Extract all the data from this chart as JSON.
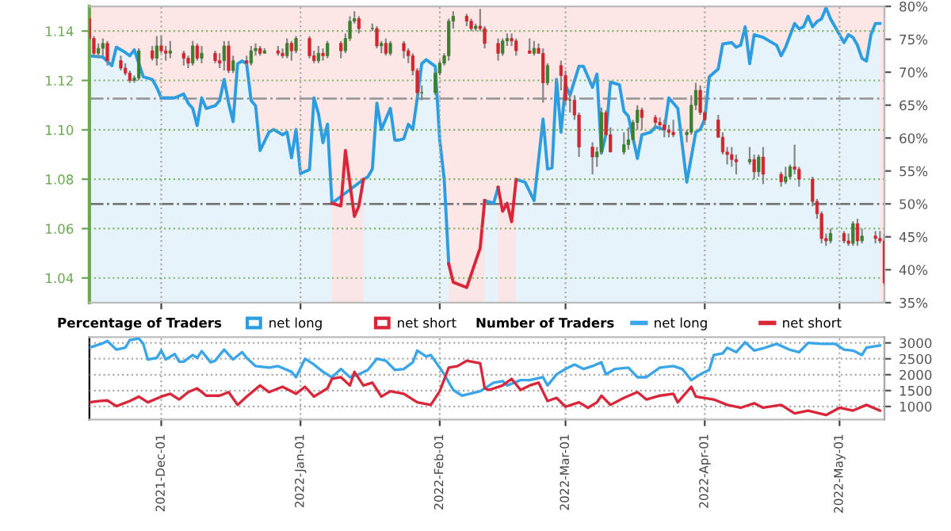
{
  "chart_data": [
    {
      "type": "candlestick",
      "legend_title": "Percentage of Traders",
      "legend": "bottom",
      "grid": true,
      "tick_labels": "y",
      "xlim": [
        "2021-11-15",
        "2022-05-11"
      ],
      "xticks": [
        {
          "value": "2021-12-01",
          "label": null
        },
        {
          "value": "2022-01-01",
          "label": null
        },
        {
          "value": "2022-02-01",
          "label": null
        },
        {
          "value": "2022-03-01",
          "label": null
        },
        {
          "value": "2022-04-01",
          "label": null
        },
        {
          "value": "2022-05-01",
          "label": null
        }
      ],
      "ylim": [
        1.03,
        1.15
      ],
      "yticks": [
        1.04,
        1.06,
        1.08,
        {
          "value": 1.1,
          "label": "1.10"
        },
        1.12,
        1.14
      ],
      "y2lim": [
        35,
        80
      ],
      "y2ticks": [
        {
          "value": 35,
          "label": "35%"
        },
        {
          "value": 40,
          "label": "40%"
        },
        {
          "value": 45,
          "label": "45%"
        },
        {
          "value": 50,
          "label": "50%"
        },
        {
          "value": 55,
          "label": "55%"
        },
        {
          "value": 60,
          "label": "60%"
        },
        {
          "value": 65,
          "label": "65%"
        },
        {
          "value": 70,
          "label": "70%"
        },
        {
          "value": 75,
          "label": "75%"
        },
        {
          "value": 80,
          "label": "80%"
        }
      ],
      "ref_lines": [
        {
          "axis": "y2",
          "value": 50,
          "label": null,
          "color": "#777777",
          "line_style": "dashdot"
        },
        {
          "axis": "y2",
          "value": 66,
          "label": null,
          "color": "#999999",
          "line_style": "dashdot"
        }
      ],
      "x": [
        "2021-11-15",
        "2021-11-16",
        "2021-11-17",
        "2021-11-18",
        "2021-11-19",
        "2021-11-22",
        "2021-11-23",
        "2021-11-24",
        "2021-11-25",
        "2021-11-26",
        "2021-11-29",
        "2021-11-30",
        "2021-12-01",
        "2021-12-02",
        "2021-12-03",
        "2021-12-06",
        "2021-12-07",
        "2021-12-08",
        "2021-12-09",
        "2021-12-10",
        "2021-12-13",
        "2021-12-14",
        "2021-12-15",
        "2021-12-16",
        "2021-12-17",
        "2021-12-20",
        "2021-12-21",
        "2021-12-22",
        "2021-12-23",
        "2021-12-24",
        "2021-12-27",
        "2021-12-28",
        "2021-12-29",
        "2021-12-30",
        "2021-12-31",
        "2022-01-03",
        "2022-01-04",
        "2022-01-05",
        "2022-01-06",
        "2022-01-07",
        "2022-01-10",
        "2022-01-11",
        "2022-01-12",
        "2022-01-13",
        "2022-01-14",
        "2022-01-17",
        "2022-01-18",
        "2022-01-19",
        "2022-01-20",
        "2022-01-21",
        "2022-01-24",
        "2022-01-25",
        "2022-01-26",
        "2022-01-27",
        "2022-01-28",
        "2022-01-31",
        "2022-02-01",
        "2022-02-02",
        "2022-02-03",
        "2022-02-04",
        "2022-02-07",
        "2022-02-08",
        "2022-02-09",
        "2022-02-10",
        "2022-02-11",
        "2022-02-14",
        "2022-02-15",
        "2022-02-16",
        "2022-02-17",
        "2022-02-18",
        "2022-02-21",
        "2022-02-22",
        "2022-02-23",
        "2022-02-24",
        "2022-02-25",
        "2022-02-28",
        "2022-03-01",
        "2022-03-02",
        "2022-03-03",
        "2022-03-04",
        "2022-03-07",
        "2022-03-08",
        "2022-03-09",
        "2022-03-10",
        "2022-03-11",
        "2022-03-14",
        "2022-03-15",
        "2022-03-16",
        "2022-03-17",
        "2022-03-18",
        "2022-03-21",
        "2022-03-22",
        "2022-03-23",
        "2022-03-24",
        "2022-03-25",
        "2022-03-28",
        "2022-03-29",
        "2022-03-30",
        "2022-03-31",
        "2022-04-01",
        "2022-04-04",
        "2022-04-05",
        "2022-04-06",
        "2022-04-07",
        "2022-04-08",
        "2022-04-11",
        "2022-04-12",
        "2022-04-13",
        "2022-04-14",
        "2022-04-18",
        "2022-04-19",
        "2022-04-20",
        "2022-04-21",
        "2022-04-22",
        "2022-04-25",
        "2022-04-26",
        "2022-04-27",
        "2022-04-28",
        "2022-04-29",
        "2022-05-02",
        "2022-05-03",
        "2022-05-04",
        "2022-05-05",
        "2022-05-06",
        "2022-05-09",
        "2022-05-10",
        "2022-05-11"
      ],
      "ohlc": [
        [
          1.145,
          1.146,
          1.136,
          1.137
        ],
        [
          1.137,
          1.138,
          1.13,
          1.131
        ],
        [
          1.131,
          1.135,
          1.129,
          1.133
        ],
        [
          1.133,
          1.137,
          1.13,
          1.135
        ],
        [
          1.135,
          1.136,
          1.126,
          1.128
        ],
        [
          1.128,
          1.13,
          1.124,
          1.125
        ],
        [
          1.125,
          1.127,
          1.122,
          1.123
        ],
        [
          1.123,
          1.124,
          1.119,
          1.12
        ],
        [
          1.12,
          1.122,
          1.119,
          1.121
        ],
        [
          1.121,
          1.133,
          1.12,
          1.132
        ],
        [
          1.132,
          1.134,
          1.128,
          1.129
        ],
        [
          1.129,
          1.138,
          1.126,
          1.134
        ],
        [
          1.134,
          1.138,
          1.131,
          1.132
        ],
        [
          1.132,
          1.134,
          1.128,
          1.131
        ],
        [
          1.131,
          1.136,
          1.129,
          1.132
        ],
        [
          1.131,
          1.132,
          1.126,
          1.129
        ],
        [
          1.129,
          1.13,
          1.125,
          1.127
        ],
        [
          1.127,
          1.136,
          1.126,
          1.134
        ],
        [
          1.134,
          1.135,
          1.128,
          1.129
        ],
        [
          1.129,
          1.134,
          1.127,
          1.131
        ],
        [
          1.131,
          1.132,
          1.127,
          1.128
        ],
        [
          1.128,
          1.131,
          1.125,
          1.127
        ],
        [
          1.128,
          1.136,
          1.124,
          1.134
        ],
        [
          1.134,
          1.136,
          1.123,
          1.124
        ],
        [
          1.124,
          1.13,
          1.123,
          1.128
        ],
        [
          1.128,
          1.13,
          1.126,
          1.127
        ],
        [
          1.127,
          1.134,
          1.126,
          1.132
        ],
        [
          1.132,
          1.135,
          1.13,
          1.133
        ],
        [
          1.133,
          1.134,
          1.13,
          1.131
        ],
        [
          1.131,
          1.133,
          1.131,
          1.132
        ],
        [
          1.132,
          1.134,
          1.13,
          1.131
        ],
        [
          1.131,
          1.133,
          1.129,
          1.13
        ],
        [
          1.13,
          1.137,
          1.129,
          1.135
        ],
        [
          1.135,
          1.136,
          1.128,
          1.132
        ],
        [
          1.132,
          1.138,
          1.131,
          1.137
        ],
        [
          1.137,
          1.138,
          1.129,
          1.13
        ],
        [
          1.13,
          1.132,
          1.127,
          1.128
        ],
        [
          1.128,
          1.134,
          1.127,
          1.131
        ],
        [
          1.131,
          1.133,
          1.128,
          1.13
        ],
        [
          1.13,
          1.136,
          1.129,
          1.135
        ],
        [
          1.135,
          1.136,
          1.129,
          1.132
        ],
        [
          1.132,
          1.139,
          1.131,
          1.137
        ],
        [
          1.137,
          1.146,
          1.136,
          1.144
        ],
        [
          1.144,
          1.148,
          1.143,
          1.145
        ],
        [
          1.145,
          1.146,
          1.139,
          1.141
        ],
        [
          1.141,
          1.143,
          1.14,
          1.141
        ],
        [
          1.141,
          1.142,
          1.133,
          1.134
        ],
        [
          1.134,
          1.136,
          1.131,
          1.135
        ],
        [
          1.135,
          1.137,
          1.13,
          1.131
        ],
        [
          1.131,
          1.136,
          1.13,
          1.135
        ],
        [
          1.135,
          1.136,
          1.129,
          1.132
        ],
        [
          1.132,
          1.133,
          1.127,
          1.13
        ],
        [
          1.13,
          1.131,
          1.122,
          1.124
        ],
        [
          1.124,
          1.125,
          1.113,
          1.115
        ],
        [
          1.115,
          1.118,
          1.112,
          1.115
        ],
        [
          1.115,
          1.124,
          1.114,
          1.123
        ],
        [
          1.123,
          1.128,
          1.122,
          1.127
        ],
        [
          1.127,
          1.131,
          1.126,
          1.13
        ],
        [
          1.13,
          1.145,
          1.128,
          1.144
        ],
        [
          1.144,
          1.148,
          1.141,
          1.146
        ],
        [
          1.146,
          1.147,
          1.142,
          1.144
        ],
        [
          1.144,
          1.145,
          1.14,
          1.141
        ],
        [
          1.141,
          1.143,
          1.14,
          1.142
        ],
        [
          1.142,
          1.149,
          1.14,
          1.141
        ],
        [
          1.141,
          1.142,
          1.133,
          1.135
        ],
        [
          1.135,
          1.137,
          1.128,
          1.131
        ],
        [
          1.131,
          1.137,
          1.13,
          1.136
        ],
        [
          1.136,
          1.139,
          1.134,
          1.137
        ],
        [
          1.137,
          1.139,
          1.134,
          1.136
        ],
        [
          1.136,
          1.137,
          1.13,
          1.132
        ],
        [
          1.132,
          1.137,
          1.131,
          1.131
        ],
        [
          1.131,
          1.136,
          1.13,
          1.133
        ],
        [
          1.133,
          1.135,
          1.131,
          1.131
        ],
        [
          1.131,
          1.133,
          1.111,
          1.119
        ],
        [
          1.119,
          1.127,
          1.118,
          1.126
        ],
        [
          1.126,
          1.128,
          1.116,
          1.122
        ],
        [
          1.122,
          1.124,
          1.11,
          1.112
        ],
        [
          1.112,
          1.115,
          1.107,
          1.112
        ],
        [
          1.112,
          1.114,
          1.104,
          1.106
        ],
        [
          1.106,
          1.107,
          1.089,
          1.093
        ],
        [
          1.093,
          1.095,
          1.082,
          1.089
        ],
        [
          1.089,
          1.093,
          1.085,
          1.091
        ],
        [
          1.091,
          1.109,
          1.09,
          1.107
        ],
        [
          1.107,
          1.108,
          1.097,
          1.098
        ],
        [
          1.098,
          1.101,
          1.091,
          1.091
        ],
        [
          1.091,
          1.099,
          1.09,
          1.094
        ],
        [
          1.094,
          1.101,
          1.092,
          1.096
        ],
        [
          1.096,
          1.104,
          1.095,
          1.103
        ],
        [
          1.103,
          1.11,
          1.1,
          1.108
        ],
        [
          1.108,
          1.109,
          1.1,
          1.105
        ],
        [
          1.105,
          1.106,
          1.101,
          1.103
        ],
        [
          1.103,
          1.105,
          1.101,
          1.102
        ],
        [
          1.102,
          1.104,
          1.097,
          1.1
        ],
        [
          1.1,
          1.102,
          1.097,
          1.099
        ],
        [
          1.099,
          1.104,
          1.097,
          1.098
        ],
        [
          1.098,
          1.1,
          1.095,
          1.099
        ],
        [
          1.099,
          1.114,
          1.098,
          1.11
        ],
        [
          1.11,
          1.119,
          1.108,
          1.116
        ],
        [
          1.116,
          1.118,
          1.106,
          1.107
        ],
        [
          1.107,
          1.108,
          1.102,
          1.104
        ],
        [
          1.104,
          1.106,
          1.097,
          1.097
        ],
        [
          1.097,
          1.099,
          1.09,
          1.091
        ],
        [
          1.091,
          1.093,
          1.086,
          1.09
        ],
        [
          1.09,
          1.093,
          1.085,
          1.088
        ],
        [
          1.088,
          1.09,
          1.082,
          1.087
        ],
        [
          1.087,
          1.093,
          1.086,
          1.088
        ],
        [
          1.088,
          1.09,
          1.08,
          1.083
        ],
        [
          1.083,
          1.09,
          1.081,
          1.089
        ],
        [
          1.089,
          1.093,
          1.078,
          1.082
        ],
        [
          1.082,
          1.083,
          1.077,
          1.079
        ],
        [
          1.079,
          1.085,
          1.078,
          1.081
        ],
        [
          1.081,
          1.086,
          1.08,
          1.085
        ],
        [
          1.085,
          1.094,
          1.082,
          1.084
        ],
        [
          1.084,
          1.085,
          1.077,
          1.08
        ],
        [
          1.08,
          1.081,
          1.069,
          1.071
        ],
        [
          1.071,
          1.072,
          1.064,
          1.066
        ],
        [
          1.066,
          1.067,
          1.054,
          1.056
        ],
        [
          1.056,
          1.058,
          1.053,
          1.055
        ],
        [
          1.055,
          1.06,
          1.054,
          1.058
        ],
        [
          1.058,
          1.059,
          1.054,
          1.055
        ],
        [
          1.055,
          1.058,
          1.053,
          1.054
        ],
        [
          1.054,
          1.063,
          1.053,
          1.062
        ],
        [
          1.062,
          1.064,
          1.053,
          1.055
        ],
        [
          1.055,
          1.06,
          1.054,
          1.057
        ],
        [
          1.057,
          1.059,
          1.054,
          1.056
        ],
        [
          1.056,
          1.059,
          1.054,
          1.055
        ],
        [
          1.055,
          1.058,
          1.037,
          1.038
        ]
      ],
      "series": [
        {
          "name": "net long",
          "type": "area",
          "axis": "y2",
          "color": "#2b9de0",
          "x": [
            "2021-11-15",
            "2021-11-18",
            "2021-11-20",
            "2021-11-21",
            "2021-11-23",
            "2021-11-24",
            "2021-11-25",
            "2021-11-27",
            "2021-11-29",
            "2021-11-30",
            "2021-12-01",
            "2021-12-04",
            "2021-12-06",
            "2021-12-07",
            "2021-12-08",
            "2021-12-09",
            "2021-12-10",
            "2021-12-11",
            "2021-12-13",
            "2021-12-14",
            "2021-12-15",
            "2021-12-16",
            "2021-12-17",
            "2021-12-18",
            "2021-12-19",
            "2021-12-20",
            "2021-12-21",
            "2021-12-22",
            "2021-12-23",
            "2021-12-25",
            "2021-12-26",
            "2021-12-28",
            "2021-12-29",
            "2021-12-30",
            "2021-12-31",
            "2022-01-01",
            "2022-01-03",
            "2022-01-04",
            "2022-01-05",
            "2022-01-06",
            "2022-01-07",
            "2022-01-08",
            "2022-01-15",
            "2022-01-16",
            "2022-01-17",
            "2022-01-18",
            "2022-01-19",
            "2022-01-21",
            "2022-01-22",
            "2022-01-23",
            "2022-01-24",
            "2022-01-25",
            "2022-01-26",
            "2022-01-27",
            "2022-01-28",
            "2022-01-29",
            "2022-01-31",
            "2022-02-01",
            "2022-02-02",
            "2022-02-03",
            null,
            "2022-02-11",
            "2022-02-13",
            "2022-02-14",
            null,
            "2022-02-18",
            "2022-02-20",
            "2022-02-22",
            "2022-02-24",
            "2022-02-25",
            "2022-02-26",
            "2022-02-27",
            "2022-02-28",
            "2022-03-01",
            "2022-03-02",
            "2022-03-04",
            "2022-03-05",
            "2022-03-07",
            "2022-03-08",
            "2022-03-09",
            "2022-03-10",
            "2022-03-11",
            "2022-03-13",
            "2022-03-14",
            "2022-03-15",
            "2022-03-17",
            "2022-03-18",
            "2022-03-20",
            "2022-03-21",
            "2022-03-23",
            "2022-03-24",
            "2022-03-26",
            "2022-03-27",
            "2022-03-28",
            "2022-03-30",
            "2022-03-31",
            "2022-04-01",
            "2022-04-02",
            "2022-04-04",
            "2022-04-05",
            "2022-04-07",
            "2022-04-08",
            "2022-04-09",
            "2022-04-10",
            "2022-04-11",
            "2022-04-12",
            "2022-04-14",
            "2022-04-17",
            "2022-04-18",
            "2022-04-19",
            "2022-04-21",
            "2022-04-22",
            "2022-04-23",
            "2022-04-24",
            "2022-04-25",
            "2022-04-26",
            "2022-04-27",
            "2022-04-28",
            "2022-04-29",
            "2022-04-30",
            "2022-05-02",
            "2022-05-03",
            "2022-05-04",
            "2022-05-05",
            "2022-05-06",
            "2022-05-07",
            "2022-05-08",
            "2022-05-09",
            "2022-05-10"
          ],
          "values": [
            72.5,
            72.3,
            71.0,
            73.8,
            73.0,
            72.5,
            73.4,
            69.3,
            68.9,
            67.7,
            66.1,
            66.1,
            66.7,
            65.3,
            64.5,
            61.9,
            66.1,
            64.5,
            64.9,
            65.7,
            68.9,
            65.3,
            62.5,
            71.3,
            71.7,
            71.3,
            65.7,
            64.9,
            58.1,
            60.9,
            61.3,
            60.5,
            60.9,
            57.0,
            61.3,
            54.6,
            55.2,
            66.1,
            63.7,
            59.3,
            62.1,
            50.1,
            53.7,
            54.1,
            55.3,
            65.3,
            61.3,
            64.5,
            59.7,
            59.7,
            59.9,
            62.1,
            61.3,
            66.1,
            71.3,
            71.9,
            70.9,
            59.7,
            53.7,
            40.9,
            null,
            50.5,
            50.1,
            52.5,
            null,
            53.7,
            53.3,
            50.5,
            62.9,
            55.3,
            55.5,
            68.9,
            60.9,
            68.1,
            66.5,
            70.9,
            70.9,
            67.7,
            69.7,
            57.7,
            60.5,
            68.5,
            68.1,
            64.1,
            63.3,
            56.9,
            60.5,
            60.9,
            61.7,
            61.3,
            66.1,
            64.5,
            58.9,
            53.3,
            60.9,
            61.3,
            62.9,
            69.3,
            70.5,
            74.3,
            74.5,
            73.8,
            74.1,
            76.9,
            71.3,
            75.7,
            75.3,
            74.1,
            72.5,
            73.8,
            77.4,
            76.6,
            76.9,
            78.5,
            76.9,
            77.7,
            78.1,
            79.8,
            78.1,
            76.9,
            74.5,
            75.7,
            75.3,
            74.1,
            72.1,
            71.7,
            75.7,
            77.4,
            77.4
          ]
        },
        {
          "name": "net short",
          "type": "area",
          "axis": "y2",
          "color": "#d9263a",
          "x": [
            "2022-01-08",
            "2022-01-10",
            "2022-01-11",
            "2022-01-13",
            "2022-01-14",
            "2022-01-15",
            null,
            "2022-02-03",
            "2022-02-04",
            "2022-02-07",
            "2022-02-08",
            "2022-02-10",
            "2022-02-11",
            null,
            "2022-02-14",
            "2022-02-15",
            "2022-02-16",
            "2022-02-17",
            "2022-02-18"
          ],
          "values": [
            50.1,
            49.7,
            58.1,
            48.1,
            49.7,
            53.7,
            null,
            40.9,
            38.1,
            37.3,
            39.3,
            43.3,
            50.5,
            null,
            52.5,
            48.9,
            50.1,
            47.3,
            53.7
          ]
        }
      ]
    },
    {
      "type": "line",
      "legend_title": "Number of Traders",
      "legend": "top",
      "grid": true,
      "xlim": [
        "2021-11-15",
        "2022-05-11"
      ],
      "xticks": [
        {
          "value": "2021-12-01",
          "label": "2021-Dec-01"
        },
        {
          "value": "2022-01-01",
          "label": "2022-Jan-01"
        },
        {
          "value": "2022-02-01",
          "label": "2022-Feb-01"
        },
        {
          "value": "2022-03-01",
          "label": "2022-Mar-01"
        },
        {
          "value": "2022-04-01",
          "label": "2022-Apr-01"
        },
        {
          "value": "2022-05-01",
          "label": "2022-May-01"
        }
      ],
      "y2lim": [
        590,
        3180
      ],
      "y2ticks": [
        1000,
        1500,
        2000,
        2500,
        3000
      ],
      "series": [
        {
          "name": "net long",
          "axis": "y2",
          "color": "#3aa5e8",
          "x": [
            "2021-11-15",
            "2021-11-18",
            "2021-11-19",
            "2021-11-21",
            "2021-11-23",
            "2021-11-24",
            "2021-11-26",
            "2021-11-27",
            "2021-11-28",
            "2021-11-30",
            "2021-12-01",
            "2021-12-02",
            "2021-12-04",
            "2021-12-05",
            "2021-12-06",
            "2021-12-08",
            "2021-12-09",
            "2021-12-10",
            "2021-12-12",
            "2021-12-13",
            "2021-12-15",
            "2021-12-17",
            "2021-12-19",
            "2021-12-20",
            "2021-12-22",
            "2021-12-25",
            "2021-12-27",
            "2021-12-30",
            "2021-12-31",
            "2022-01-02",
            "2022-01-04",
            "2022-01-06",
            "2022-01-08",
            "2022-01-10",
            "2022-01-12",
            "2022-01-14",
            "2022-01-16",
            "2022-01-18",
            "2022-01-20",
            "2022-01-22",
            "2022-01-24",
            "2022-01-26",
            "2022-01-27",
            "2022-01-29",
            "2022-01-30",
            "2022-02-01",
            "2022-02-02",
            "2022-02-04",
            "2022-02-06",
            "2022-02-10",
            "2022-02-13",
            "2022-02-15",
            "2022-02-16",
            "2022-02-19",
            "2022-02-21",
            "2022-02-24",
            "2022-02-25",
            "2022-02-27",
            "2022-03-01",
            "2022-03-03",
            "2022-03-05",
            "2022-03-07",
            "2022-03-09",
            "2022-03-10",
            "2022-03-12",
            "2022-03-15",
            "2022-03-17",
            "2022-03-19",
            "2022-03-22",
            "2022-03-25",
            "2022-03-27",
            "2022-03-29",
            "2022-03-31",
            "2022-04-02",
            "2022-04-03",
            "2022-04-05",
            "2022-04-06",
            "2022-04-08",
            "2022-04-10",
            "2022-04-12",
            "2022-04-14",
            "2022-04-17",
            "2022-04-20",
            "2022-04-22",
            "2022-04-24",
            "2022-04-27",
            "2022-04-30",
            "2022-05-02",
            "2022-05-04",
            "2022-05-06",
            "2022-05-07",
            "2022-05-10"
          ],
          "values": [
            2850,
            2990,
            3060,
            2790,
            2850,
            3090,
            3140,
            2970,
            2480,
            2530,
            2760,
            2480,
            2650,
            2410,
            2410,
            2620,
            2530,
            2740,
            2390,
            2440,
            2790,
            2480,
            2710,
            2530,
            2270,
            2220,
            2270,
            2090,
            1920,
            2500,
            2320,
            2090,
            1920,
            2180,
            1920,
            2010,
            2150,
            2500,
            2440,
            2150,
            2180,
            2390,
            2760,
            2570,
            2620,
            2220,
            2010,
            1520,
            1340,
            1480,
            1750,
            1800,
            1660,
            1830,
            1830,
            1920,
            1660,
            2010,
            2180,
            2320,
            2180,
            2270,
            2390,
            2010,
            2180,
            2220,
            1920,
            1920,
            2220,
            2270,
            2180,
            1830,
            2010,
            2150,
            2620,
            2670,
            2850,
            2710,
            3020,
            2760,
            2830,
            2970,
            2780,
            2710,
            3000,
            2970,
            2970,
            2790,
            2760,
            2620,
            2850,
            2920
          ]
        },
        {
          "name": "net short",
          "axis": "y2",
          "color": "#d9263a",
          "x": [
            "2021-11-15",
            "2021-11-17",
            "2021-11-19",
            "2021-11-21",
            "2021-11-24",
            "2021-11-26",
            "2021-11-28",
            "2021-12-01",
            "2021-12-03",
            "2021-12-05",
            "2021-12-07",
            "2021-12-09",
            "2021-12-11",
            "2021-12-14",
            "2021-12-16",
            "2021-12-18",
            "2021-12-20",
            "2021-12-23",
            "2021-12-25",
            "2021-12-28",
            "2021-12-31",
            "2022-01-02",
            "2022-01-04",
            "2022-01-07",
            "2022-01-08",
            "2022-01-10",
            "2022-01-12",
            "2022-01-13",
            "2022-01-15",
            "2022-01-17",
            "2022-01-19",
            "2022-01-21",
            "2022-01-24",
            "2022-01-27",
            "2022-01-30",
            "2022-02-01",
            "2022-02-03",
            "2022-02-05",
            "2022-02-07",
            "2022-02-10",
            "2022-02-11",
            "2022-02-12",
            "2022-02-15",
            "2022-02-17",
            "2022-02-19",
            "2022-02-21",
            "2022-02-23",
            "2022-02-25",
            "2022-02-27",
            "2022-03-01",
            "2022-03-04",
            "2022-03-06",
            "2022-03-08",
            "2022-03-09",
            "2022-03-11",
            "2022-03-14",
            "2022-03-17",
            "2022-03-19",
            "2022-03-22",
            "2022-03-25",
            "2022-03-26",
            "2022-03-29",
            "2022-03-30",
            "2022-04-03",
            "2022-04-06",
            "2022-04-09",
            "2022-04-12",
            "2022-04-14",
            "2022-04-18",
            "2022-04-21",
            "2022-04-24",
            "2022-04-28",
            "2022-05-01",
            "2022-05-04",
            "2022-05-07",
            "2022-05-10"
          ],
          "values": [
            1130,
            1170,
            1190,
            1010,
            1170,
            1310,
            1130,
            1310,
            1400,
            1220,
            1450,
            1570,
            1340,
            1340,
            1450,
            1050,
            1310,
            1660,
            1450,
            1620,
            1400,
            1620,
            1310,
            1570,
            1870,
            1920,
            1660,
            2090,
            1660,
            1750,
            1310,
            1480,
            1400,
            1130,
            1050,
            1480,
            2220,
            2270,
            2440,
            2360,
            1570,
            1520,
            1660,
            1870,
            1520,
            1660,
            1750,
            1170,
            1270,
            990,
            1130,
            960,
            1130,
            1340,
            1050,
            1270,
            1450,
            1220,
            1340,
            1400,
            1130,
            1620,
            1310,
            1220,
            1050,
            960,
            1100,
            960,
            1050,
            780,
            870,
            730,
            960,
            870,
            1050,
            870
          ]
        }
      ]
    }
  ]
}
